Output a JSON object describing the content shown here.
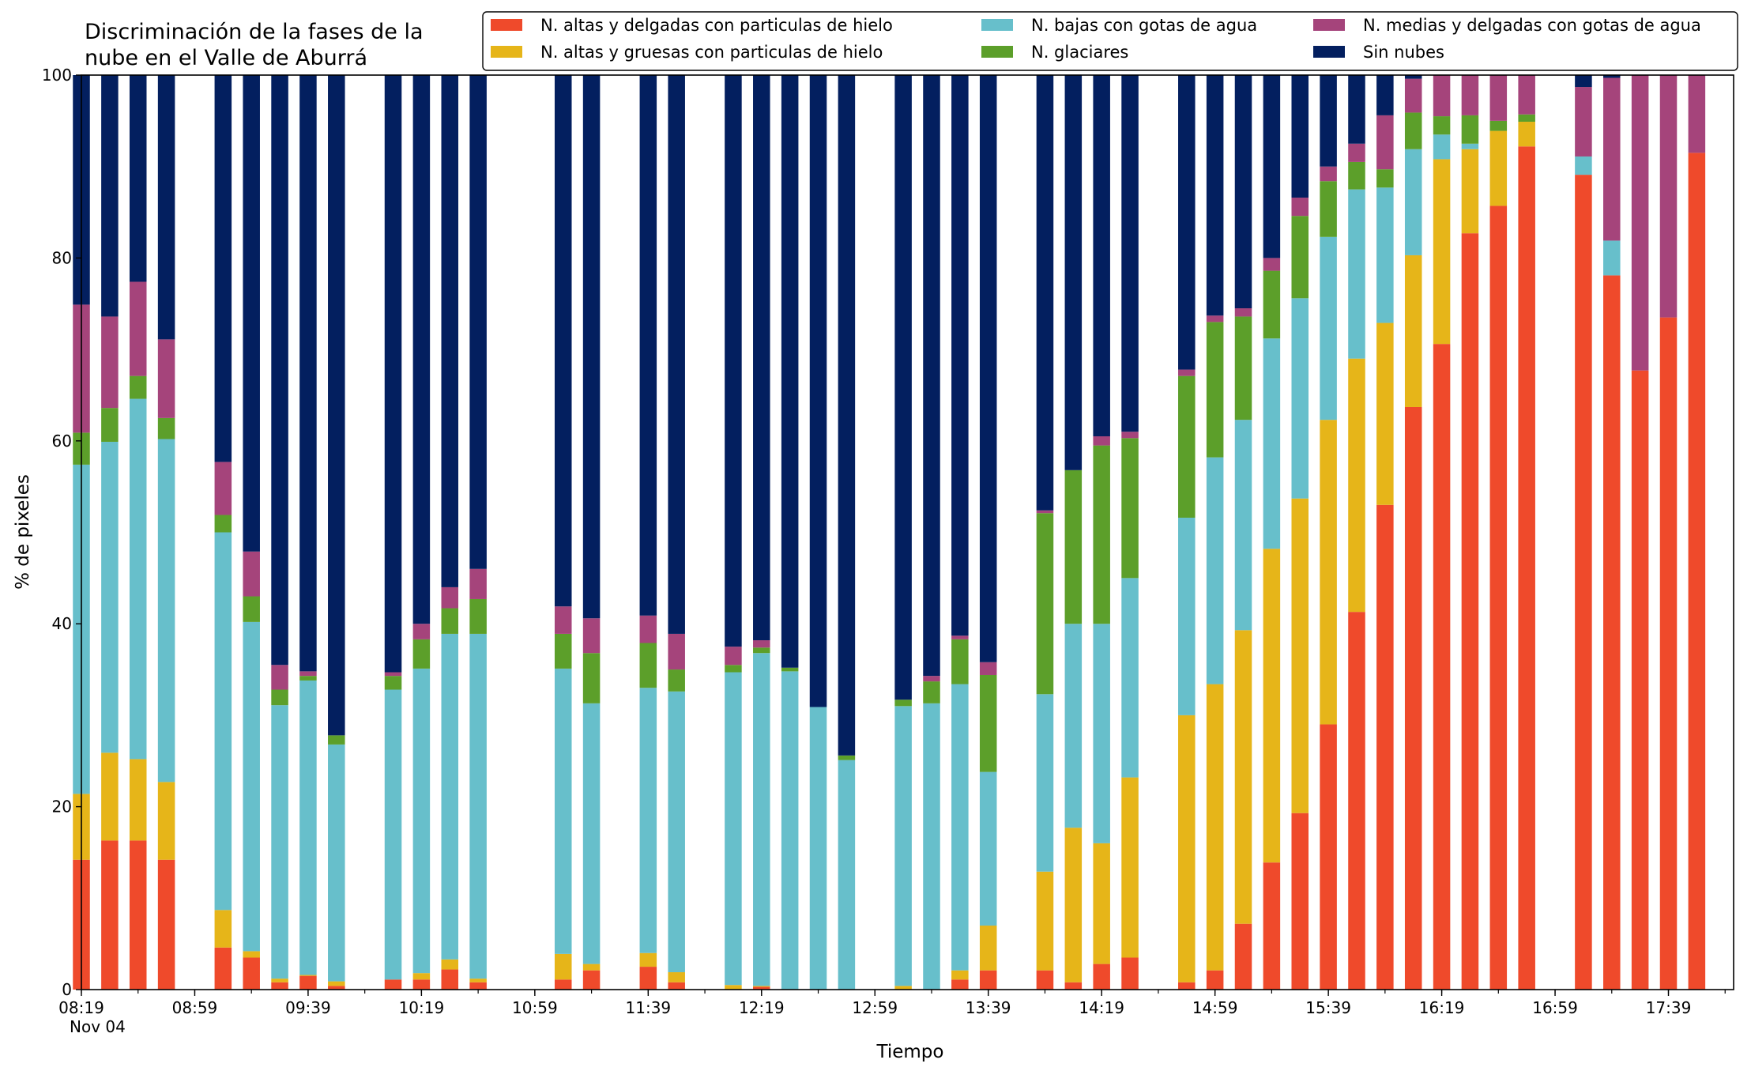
{
  "chart_data": {
    "type": "bar",
    "stacked": true,
    "title": "Discriminación de la fases de la nube en el Valle de Aburrá",
    "title_lines": [
      "Discriminación de la fases de la",
      "nube en el Valle de Aburrá"
    ],
    "xlabel": "Tiempo",
    "ylabel": "% de pixeles",
    "ylim": [
      0,
      100
    ],
    "yticks": [
      "0",
      "20",
      "40",
      "60",
      "80",
      "100"
    ],
    "date_label": "Nov 04",
    "grid": false,
    "legend_position": "top-right",
    "time_start_min": 499,
    "time_end_min": 1082,
    "slot_minutes": 10,
    "xtick_labels": [
      "08:19",
      "08:59",
      "09:39",
      "10:19",
      "10:59",
      "11:39",
      "12:19",
      "12:59",
      "13:39",
      "14:19",
      "14:59",
      "15:39",
      "16:19",
      "16:59",
      "17:39"
    ],
    "series": [
      {
        "name": "N. altas y delgadas con particulas de hielo",
        "color": "#ef4a2b"
      },
      {
        "name": "N. altas y gruesas con particulas de hielo",
        "color": "#e6b519"
      },
      {
        "name": "N. bajas con gotas de agua",
        "color": "#67bfcb"
      },
      {
        "name": "N. glaciares",
        "color": "#5c9f2a"
      },
      {
        "name": "N. medias y delgadas con gotas de agua",
        "color": "#a5447b"
      },
      {
        "name": "Sin nubes",
        "color": "#031f5f"
      }
    ],
    "legend_order": [
      0,
      1,
      2,
      3,
      4,
      5
    ],
    "bars": [
      {
        "slot": 0,
        "values": [
          14.2,
          7.2,
          36.0,
          3.5,
          14.0,
          25.1
        ]
      },
      {
        "slot": 1,
        "values": [
          16.3,
          9.6,
          34.0,
          3.7,
          10.0,
          26.4
        ]
      },
      {
        "slot": 2,
        "values": [
          16.3,
          8.9,
          39.4,
          2.5,
          10.3,
          22.6
        ]
      },
      {
        "slot": 3,
        "values": [
          14.2,
          8.5,
          37.5,
          2.3,
          8.6,
          28.9
        ]
      },
      {
        "slot": 5,
        "values": [
          4.6,
          4.1,
          41.3,
          1.9,
          5.8,
          42.3
        ]
      },
      {
        "slot": 6,
        "values": [
          3.5,
          0.7,
          36.0,
          2.8,
          4.9,
          52.1
        ]
      },
      {
        "slot": 7,
        "values": [
          0.8,
          0.4,
          29.9,
          1.7,
          2.7,
          64.5
        ]
      },
      {
        "slot": 8,
        "values": [
          1.5,
          0.1,
          32.2,
          0.5,
          0.5,
          65.2
        ]
      },
      {
        "slot": 9,
        "values": [
          0.4,
          0.5,
          25.9,
          1.0,
          0.0,
          72.2
        ]
      },
      {
        "slot": 11,
        "values": [
          1.1,
          0.0,
          31.7,
          1.5,
          0.4,
          65.3
        ]
      },
      {
        "slot": 12,
        "values": [
          1.1,
          0.7,
          33.3,
          3.2,
          1.7,
          60.0
        ]
      },
      {
        "slot": 13,
        "values": [
          2.2,
          1.1,
          35.6,
          2.8,
          2.3,
          56.0
        ]
      },
      {
        "slot": 14,
        "values": [
          0.8,
          0.4,
          37.7,
          3.8,
          3.3,
          54.0
        ]
      },
      {
        "slot": 17,
        "values": [
          1.1,
          2.8,
          31.2,
          3.8,
          3.0,
          58.1
        ]
      },
      {
        "slot": 18,
        "values": [
          2.1,
          0.7,
          28.5,
          5.5,
          3.8,
          59.4
        ]
      },
      {
        "slot": 20,
        "values": [
          2.5,
          1.5,
          29.0,
          4.9,
          3.0,
          59.1
        ]
      },
      {
        "slot": 21,
        "values": [
          0.8,
          1.1,
          30.7,
          2.4,
          3.9,
          61.1
        ]
      },
      {
        "slot": 23,
        "values": [
          0.0,
          0.5,
          34.2,
          0.8,
          2.0,
          62.5
        ]
      },
      {
        "slot": 24,
        "values": [
          0.3,
          0.1,
          36.4,
          0.6,
          0.8,
          61.8
        ]
      },
      {
        "slot": 25,
        "values": [
          0.0,
          0.0,
          34.8,
          0.4,
          0.0,
          64.8
        ]
      },
      {
        "slot": 26,
        "values": [
          0.0,
          0.0,
          30.9,
          0.0,
          0.0,
          69.1
        ]
      },
      {
        "slot": 27,
        "values": [
          0.0,
          0.0,
          25.1,
          0.5,
          0.0,
          74.4
        ]
      },
      {
        "slot": 29,
        "values": [
          0.0,
          0.4,
          30.6,
          0.7,
          0.0,
          68.3
        ]
      },
      {
        "slot": 30,
        "values": [
          0.0,
          0.0,
          31.3,
          2.4,
          0.6,
          65.7
        ]
      },
      {
        "slot": 31,
        "values": [
          1.1,
          1.0,
          31.3,
          4.9,
          0.4,
          61.3
        ]
      },
      {
        "slot": 32,
        "values": [
          2.1,
          4.9,
          16.8,
          10.6,
          1.4,
          64.2
        ]
      },
      {
        "slot": 34,
        "values": [
          2.1,
          10.8,
          19.4,
          19.8,
          0.3,
          47.6
        ]
      },
      {
        "slot": 35,
        "values": [
          0.8,
          16.9,
          22.3,
          16.8,
          0.0,
          43.2
        ]
      },
      {
        "slot": 36,
        "values": [
          2.8,
          13.2,
          24.0,
          19.5,
          1.0,
          39.5
        ]
      },
      {
        "slot": 37,
        "values": [
          3.5,
          19.7,
          21.8,
          15.3,
          0.7,
          39.0
        ]
      },
      {
        "slot": 39,
        "values": [
          0.8,
          29.2,
          21.6,
          15.5,
          0.7,
          32.2
        ]
      },
      {
        "slot": 40,
        "values": [
          2.1,
          31.3,
          24.8,
          14.8,
          0.7,
          26.3
        ]
      },
      {
        "slot": 41,
        "values": [
          7.2,
          32.1,
          23.0,
          11.3,
          0.9,
          25.5
        ]
      },
      {
        "slot": 42,
        "values": [
          13.9,
          34.3,
          23.0,
          7.4,
          1.4,
          20.0
        ]
      },
      {
        "slot": 43,
        "values": [
          19.3,
          34.4,
          21.9,
          9.0,
          2.0,
          13.4
        ]
      },
      {
        "slot": 44,
        "values": [
          29.0,
          33.3,
          20.0,
          6.1,
          1.6,
          10.0
        ]
      },
      {
        "slot": 45,
        "values": [
          41.3,
          27.7,
          18.5,
          3.0,
          2.0,
          7.5
        ]
      },
      {
        "slot": 46,
        "values": [
          53.0,
          19.9,
          14.8,
          2.0,
          5.9,
          4.4
        ]
      },
      {
        "slot": 47,
        "values": [
          63.7,
          16.6,
          11.6,
          4.0,
          3.7,
          0.4
        ]
      },
      {
        "slot": 48,
        "values": [
          70.6,
          20.2,
          2.7,
          2.0,
          4.5,
          0.0
        ]
      },
      {
        "slot": 49,
        "values": [
          82.7,
          9.2,
          0.6,
          3.1,
          4.4,
          0.0
        ]
      },
      {
        "slot": 50,
        "values": [
          85.7,
          8.2,
          0.0,
          1.1,
          5.0,
          0.0
        ]
      },
      {
        "slot": 51,
        "values": [
          92.2,
          2.7,
          0.0,
          0.8,
          4.3,
          0.0
        ]
      },
      {
        "slot": 53,
        "values": [
          89.1,
          0.0,
          2.0,
          0.0,
          7.6,
          1.3
        ]
      },
      {
        "slot": 54,
        "values": [
          78.1,
          0.0,
          3.8,
          0.0,
          17.8,
          0.3
        ]
      },
      {
        "slot": 55,
        "values": [
          67.7,
          0.0,
          0.0,
          0.0,
          32.3,
          0.0
        ]
      },
      {
        "slot": 56,
        "values": [
          73.5,
          0.0,
          0.0,
          0.0,
          26.5,
          0.0
        ]
      },
      {
        "slot": 57,
        "values": [
          91.5,
          0.0,
          0.0,
          0.0,
          8.5,
          0.0
        ]
      }
    ]
  }
}
